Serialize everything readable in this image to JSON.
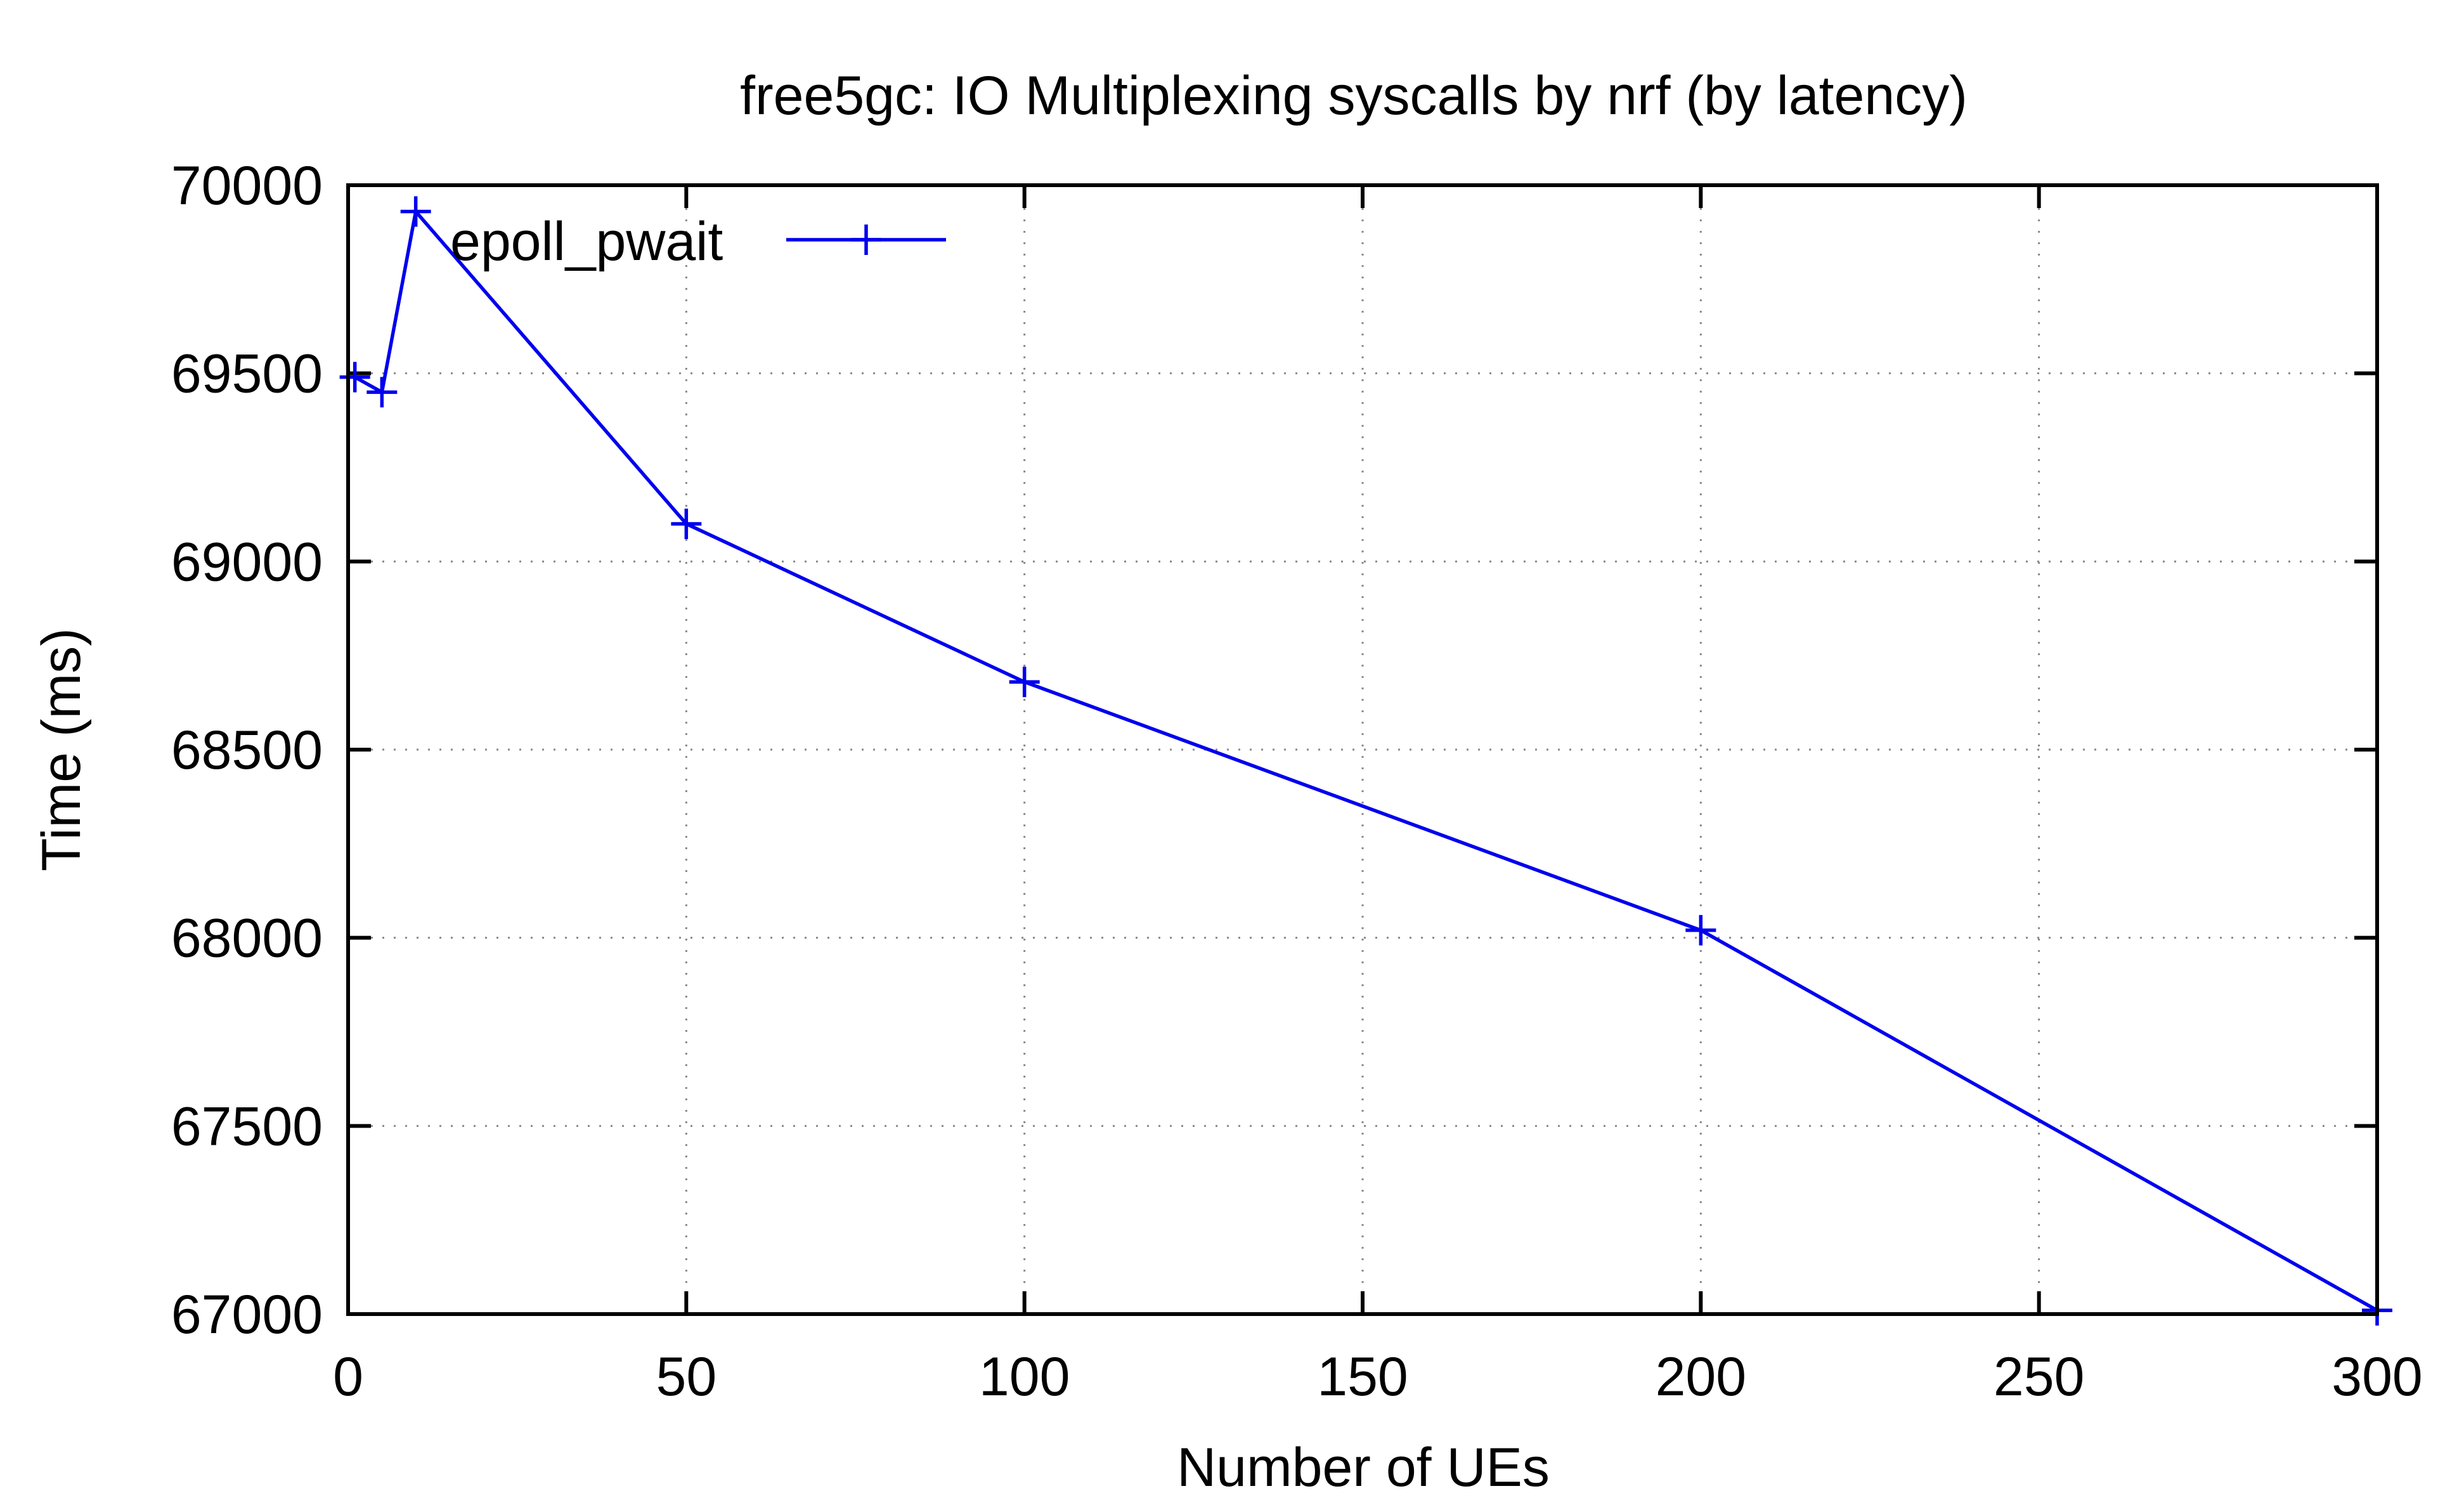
{
  "chart_data": {
    "type": "line",
    "title": "free5gc: IO Multiplexing syscalls by nrf (by latency)",
    "xlabel": "Number of UEs",
    "ylabel": "Time (ms)",
    "xlim": [
      0,
      300
    ],
    "ylim": [
      67000,
      70000
    ],
    "xticks": [
      0,
      50,
      100,
      150,
      200,
      250,
      300
    ],
    "yticks": [
      67000,
      67500,
      68000,
      68500,
      69000,
      69500,
      70000
    ],
    "xtick_labels": [
      "0",
      "50",
      "100",
      "150",
      "200",
      "250",
      "300"
    ],
    "ytick_labels": [
      "67000",
      "67500",
      "68000",
      "68500",
      "69000",
      "69500",
      "70000"
    ],
    "grid": true,
    "legend_position": "top-left",
    "series": [
      {
        "name": "epoll_pwait",
        "color": "#0000ee",
        "marker": "plus",
        "x": [
          1,
          5,
          10,
          50,
          100,
          200,
          300
        ],
        "y": [
          69490,
          69450,
          69930,
          69100,
          68680,
          68020,
          67010
        ]
      }
    ]
  }
}
